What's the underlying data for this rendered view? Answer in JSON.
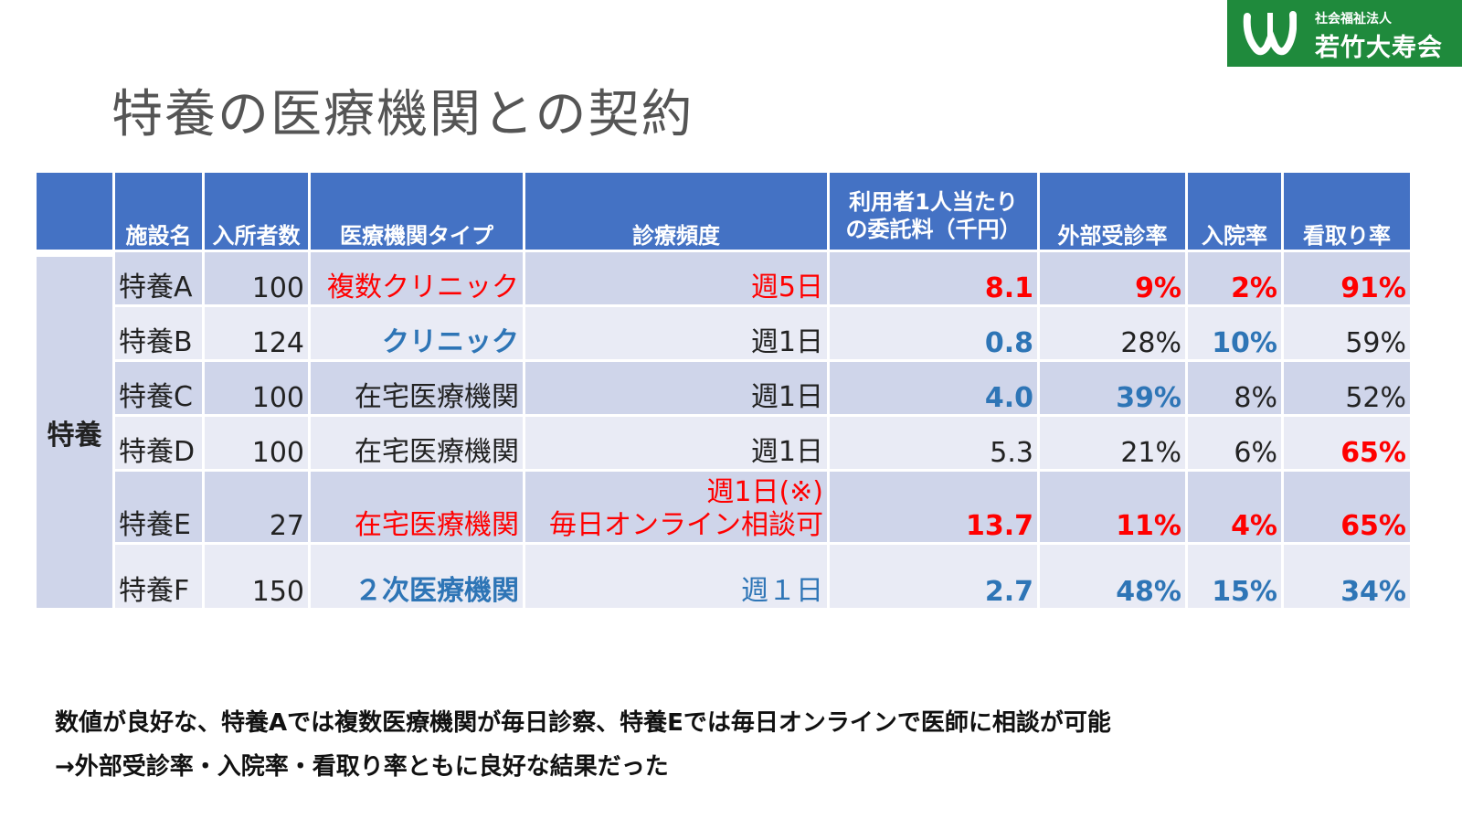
{
  "logo": {
    "org_type": "社会福祉法人",
    "org_name": "若竹大寿会"
  },
  "title": "特養の医療機関との契約",
  "table": {
    "headers": {
      "group": "",
      "facility": "施設名",
      "residents": "入所者数",
      "type": "医療機関タイプ",
      "frequency": "診療頻度",
      "fee_line1": "利用者1人当たり",
      "fee_line2": "の委託料（千円）",
      "outpatient": "外部受診率",
      "hospitalization": "入院率",
      "end_of_life": "看取り率"
    },
    "group_label": "特養",
    "rows": [
      {
        "facility": "特養A",
        "residents": "100",
        "type": "複数クリニック",
        "frequency": "週5日",
        "frequency2": "",
        "fee": "8.1",
        "outpatient": "9%",
        "hospitalization": "2%",
        "end_of_life": "91%"
      },
      {
        "facility": "特養B",
        "residents": "124",
        "type": "クリニック",
        "frequency": "週1日",
        "frequency2": "",
        "fee": "0.8",
        "outpatient": "28%",
        "hospitalization": "10%",
        "end_of_life": "59%"
      },
      {
        "facility": "特養C",
        "residents": "100",
        "type": "在宅医療機関",
        "frequency": "週1日",
        "frequency2": "",
        "fee": "4.0",
        "outpatient": "39%",
        "hospitalization": "8%",
        "end_of_life": "52%"
      },
      {
        "facility": "特養D",
        "residents": "100",
        "type": "在宅医療機関",
        "frequency": "週1日",
        "frequency2": "",
        "fee": "5.3",
        "outpatient": "21%",
        "hospitalization": "6%",
        "end_of_life": "65%"
      },
      {
        "facility": "特養E",
        "residents": "27",
        "type": "在宅医療機関",
        "frequency": "週1日(※)",
        "frequency2": "毎日オンライン相談可",
        "fee": "13.7",
        "outpatient": "11%",
        "hospitalization": "4%",
        "end_of_life": "65%"
      },
      {
        "facility": "特養F",
        "residents": "150",
        "type": "２次医療機関",
        "frequency": "週１日",
        "frequency2": "",
        "fee": "2.7",
        "outpatient": "48%",
        "hospitalization": "15%",
        "end_of_life": "34%"
      }
    ]
  },
  "notes": {
    "line1": "数値が良好な、特養Aでは複数医療機関が毎日診察、特養Eでは毎日オンラインで医師に相談が可能",
    "line2": "→外部受診率・入院率・看取り率ともに良好な結果だった"
  },
  "colors": {
    "header_bg": "#4472c4",
    "highlight_red": "#ff0000",
    "highlight_blue": "#2e75b6",
    "logo_green": "#1f8a3c"
  }
}
